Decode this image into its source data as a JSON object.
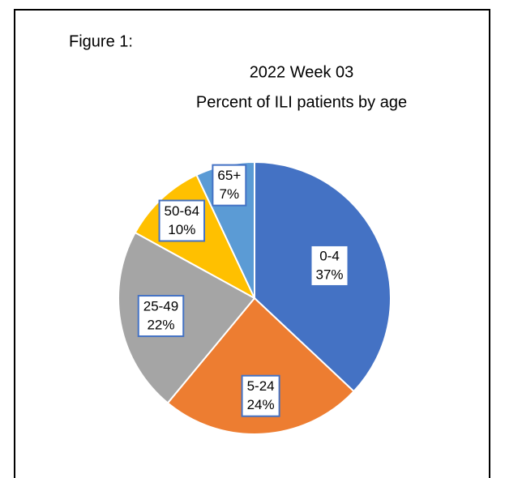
{
  "chart_data": {
    "type": "pie",
    "label": "Figure 1:",
    "title": "2022 Week 03",
    "subtitle": "Percent of ILI patients by age",
    "categories": [
      "0-4",
      "5-24",
      "25-49",
      "50-64",
      "65+"
    ],
    "values": [
      37,
      24,
      22,
      10,
      7
    ],
    "value_labels": [
      "37%",
      "24%",
      "22%",
      "10%",
      "7%"
    ],
    "colors": [
      "#4472c4",
      "#ed7d31",
      "#a5a5a5",
      "#ffc000",
      "#5b9bd5"
    ]
  }
}
